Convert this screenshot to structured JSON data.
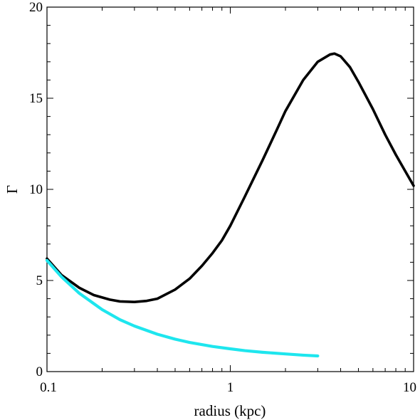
{
  "chart_data": {
    "type": "line",
    "xlabel": "radius (kpc)",
    "ylabel": "Γ",
    "xscale": "log",
    "xlim": [
      0.1,
      10
    ],
    "ylim": [
      0,
      20
    ],
    "x_ticks": [
      {
        "value": 0.1,
        "label": "0.1"
      },
      {
        "value": 1,
        "label": "1"
      },
      {
        "value": 10,
        "label": "10"
      }
    ],
    "y_ticks": [
      {
        "value": 0,
        "label": "0"
      },
      {
        "value": 5,
        "label": "5"
      },
      {
        "value": 10,
        "label": "10"
      },
      {
        "value": 15,
        "label": "15"
      },
      {
        "value": 20,
        "label": "20"
      }
    ],
    "grid": false,
    "series": [
      {
        "color": "#000000",
        "x": [
          0.1,
          0.12,
          0.15,
          0.18,
          0.22,
          0.25,
          0.3,
          0.35,
          0.4,
          0.5,
          0.6,
          0.7,
          0.8,
          0.9,
          1.0,
          1.2,
          1.5,
          1.8,
          2.0,
          2.5,
          3.0,
          3.5,
          3.7,
          4.0,
          4.5,
          5.0,
          6.0,
          7.0,
          8.0,
          9.0,
          10.0
        ],
        "y": [
          6.2,
          5.3,
          4.6,
          4.2,
          3.95,
          3.85,
          3.82,
          3.88,
          4.0,
          4.5,
          5.1,
          5.8,
          6.5,
          7.2,
          8.0,
          9.6,
          11.6,
          13.3,
          14.3,
          16.0,
          17.0,
          17.4,
          17.45,
          17.3,
          16.7,
          15.9,
          14.4,
          13.0,
          11.9,
          11.0,
          10.2
        ]
      },
      {
        "color": "#1ee6ee",
        "x": [
          0.1,
          0.12,
          0.15,
          0.2,
          0.25,
          0.3,
          0.4,
          0.5,
          0.6,
          0.8,
          1.0,
          1.2,
          1.5,
          2.0,
          2.5,
          3.0
        ],
        "y": [
          6.1,
          5.2,
          4.3,
          3.4,
          2.85,
          2.5,
          2.05,
          1.78,
          1.6,
          1.38,
          1.25,
          1.15,
          1.06,
          0.97,
          0.9,
          0.86
        ]
      }
    ]
  }
}
